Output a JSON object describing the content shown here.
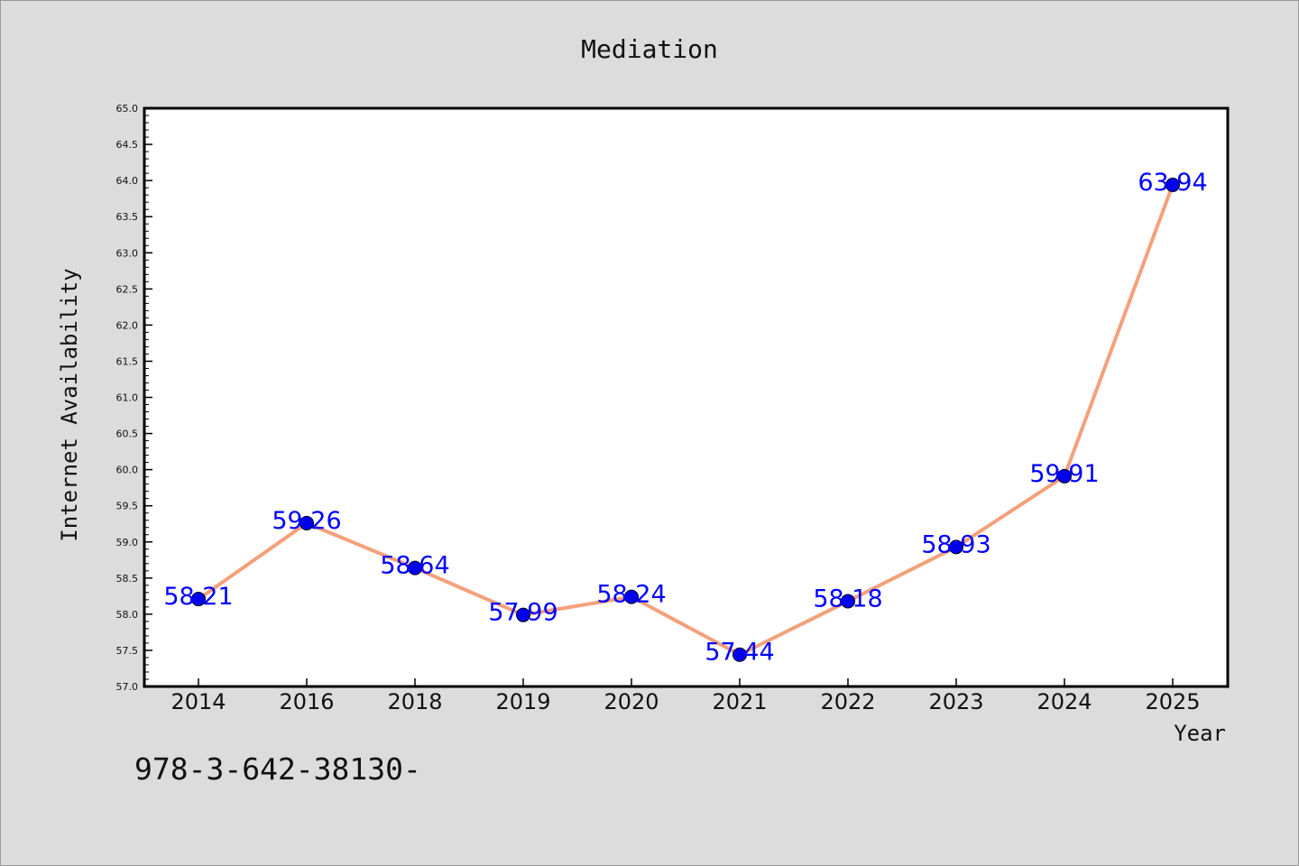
{
  "footer_text": "978-3-642-38130-",
  "colors": {
    "background": "#dcdcdc",
    "plot_background": "#ffffff",
    "line": "#f5a07a",
    "marker": "#0000ee",
    "data_label": "#0000ff",
    "text": "#111111"
  },
  "chart_data": {
    "type": "line",
    "title": "Mediation",
    "xlabel": "Year",
    "ylabel": "Internet Availability",
    "categories": [
      "2014",
      "2016",
      "2018",
      "2019",
      "2020",
      "2021",
      "2022",
      "2023",
      "2024",
      "2025"
    ],
    "values": [
      58.21,
      59.26,
      58.64,
      57.99,
      58.24,
      57.44,
      58.18,
      58.93,
      59.91,
      63.94
    ],
    "data_labels": [
      "58.21",
      "59.26",
      "58.64",
      "57.99",
      "58.24",
      "57.44",
      "58.18",
      "58.93",
      "59.91",
      "63.94"
    ],
    "ylim": [
      57.0,
      65.0
    ],
    "yticks": [
      "57.0",
      "57.5",
      "58.0",
      "58.5",
      "59.0",
      "59.5",
      "60.0",
      "60.5",
      "61.0",
      "61.5",
      "62.0",
      "62.5",
      "63.0",
      "63.5",
      "64.0",
      "64.5",
      "65.0"
    ],
    "grid": false,
    "legend": "none"
  }
}
